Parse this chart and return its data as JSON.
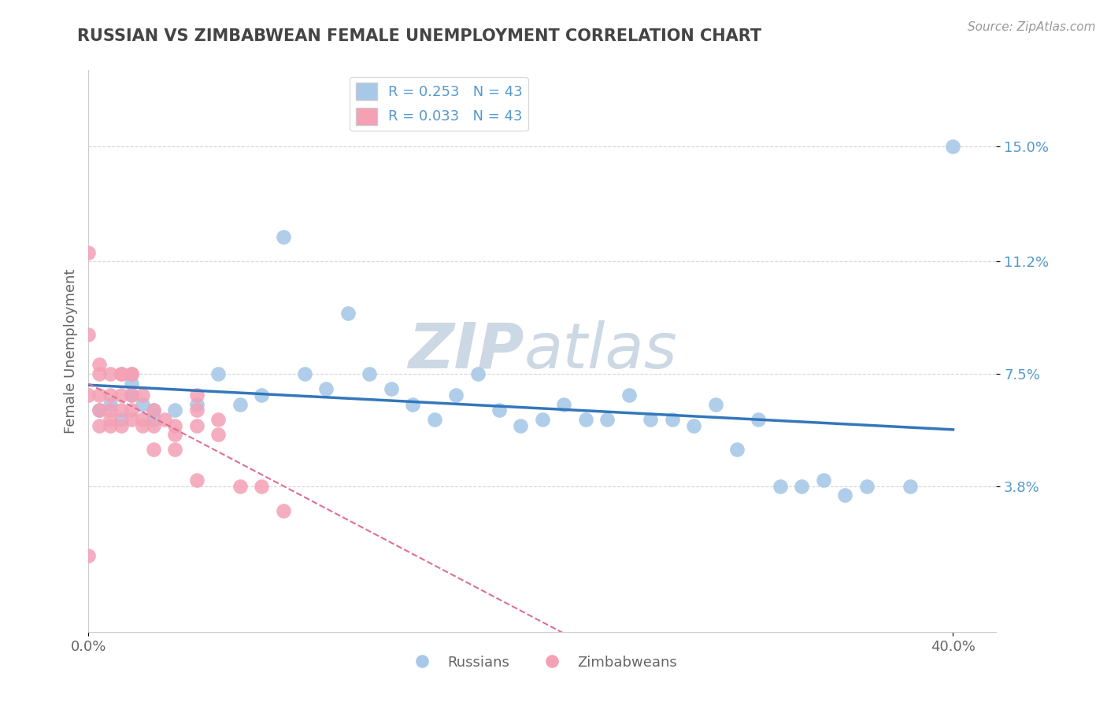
{
  "title": "RUSSIAN VS ZIMBABWEAN FEMALE UNEMPLOYMENT CORRELATION CHART",
  "source_text": "Source: ZipAtlas.com",
  "ylabel": "Female Unemployment",
  "xlim": [
    0.0,
    0.42
  ],
  "ylim": [
    -0.01,
    0.175
  ],
  "xtick_labels": [
    "0.0%",
    "40.0%"
  ],
  "xtick_values": [
    0.0,
    0.4
  ],
  "ytick_labels": [
    "3.8%",
    "7.5%",
    "11.2%",
    "15.0%"
  ],
  "ytick_values": [
    0.038,
    0.075,
    0.112,
    0.15
  ],
  "russian_R": "0.253",
  "russian_N": "43",
  "zimbabwean_R": "0.033",
  "zimbabwean_N": "43",
  "russian_color": "#a8c8e8",
  "russian_line_color": "#3377bb",
  "zimbabwean_color": "#f4a0b5",
  "zimbabwean_line_color": "#dd7090",
  "watermark_color": "#cdd8e5",
  "background_color": "#ffffff",
  "grid_color": "#cccccc",
  "title_color": "#444444",
  "axis_label_color": "#666666",
  "ytick_label_color": "#5599cc",
  "russians_scatter_x": [
    0.005,
    0.01,
    0.015,
    0.02,
    0.02,
    0.025,
    0.03,
    0.03,
    0.04,
    0.05,
    0.06,
    0.07,
    0.08,
    0.09,
    0.1,
    0.11,
    0.12,
    0.13,
    0.14,
    0.15,
    0.16,
    0.17,
    0.18,
    0.19,
    0.2,
    0.21,
    0.22,
    0.23,
    0.24,
    0.25,
    0.26,
    0.27,
    0.28,
    0.29,
    0.3,
    0.31,
    0.32,
    0.33,
    0.34,
    0.35,
    0.36,
    0.38,
    0.4
  ],
  "russians_scatter_y": [
    0.063,
    0.065,
    0.06,
    0.068,
    0.072,
    0.065,
    0.06,
    0.063,
    0.063,
    0.065,
    0.075,
    0.065,
    0.068,
    0.12,
    0.075,
    0.07,
    0.095,
    0.075,
    0.07,
    0.065,
    0.06,
    0.068,
    0.075,
    0.063,
    0.058,
    0.06,
    0.065,
    0.06,
    0.06,
    0.068,
    0.06,
    0.06,
    0.058,
    0.065,
    0.05,
    0.06,
    0.038,
    0.038,
    0.04,
    0.035,
    0.038,
    0.038,
    0.15
  ],
  "zimbabweans_scatter_x": [
    0.0,
    0.0,
    0.0,
    0.0,
    0.005,
    0.005,
    0.005,
    0.005,
    0.005,
    0.01,
    0.01,
    0.01,
    0.01,
    0.01,
    0.015,
    0.015,
    0.015,
    0.015,
    0.015,
    0.02,
    0.02,
    0.02,
    0.02,
    0.02,
    0.025,
    0.025,
    0.025,
    0.03,
    0.03,
    0.03,
    0.035,
    0.04,
    0.04,
    0.04,
    0.05,
    0.05,
    0.05,
    0.05,
    0.06,
    0.06,
    0.07,
    0.08,
    0.09
  ],
  "zimbabweans_scatter_y": [
    0.115,
    0.088,
    0.068,
    0.015,
    0.078,
    0.075,
    0.068,
    0.063,
    0.058,
    0.075,
    0.068,
    0.063,
    0.06,
    0.058,
    0.075,
    0.075,
    0.068,
    0.063,
    0.058,
    0.075,
    0.075,
    0.068,
    0.063,
    0.06,
    0.068,
    0.06,
    0.058,
    0.063,
    0.058,
    0.05,
    0.06,
    0.058,
    0.055,
    0.05,
    0.068,
    0.063,
    0.058,
    0.04,
    0.06,
    0.055,
    0.038,
    0.038,
    0.03
  ]
}
